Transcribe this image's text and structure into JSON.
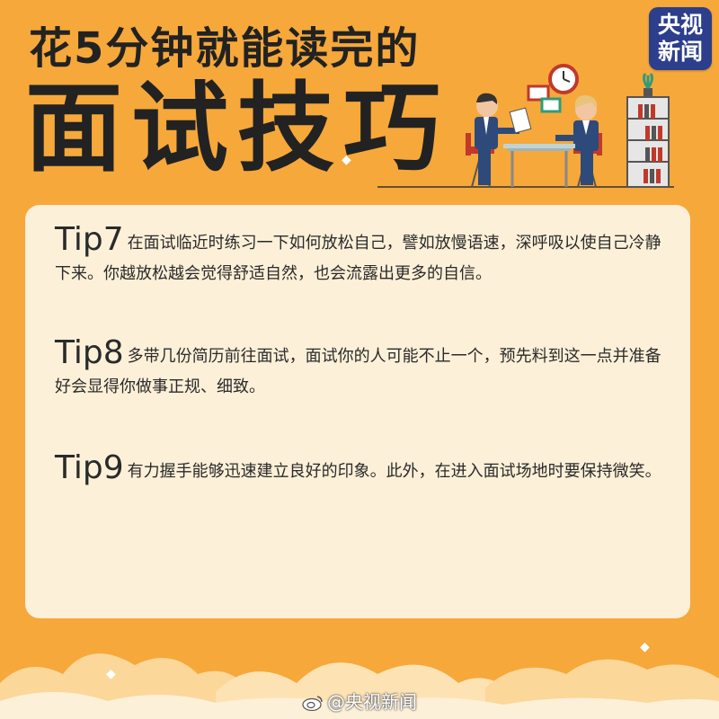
{
  "header": {
    "subtitle": "花5分钟就能读完的",
    "title": "面试技巧"
  },
  "logo": {
    "line1": "央视",
    "line2": "新闻"
  },
  "tips": [
    {
      "label": "Tip7",
      "text": "在面试临近时练习一下如何放松自己，譬如放慢语速，深呼吸以使自己冷静下来。你越放松越会觉得舒适自然，也会流露出更多的自信。"
    },
    {
      "label": "Tip8",
      "text": "多带几份简历前往面试，面试你的人可能不止一个，预先料到这一点并准备好会显得你做事正规、细致。"
    },
    {
      "label": "Tip9",
      "text": "有力握手能够迅速建立良好的印象。此外，在进入面试场地时要保持微笑。"
    }
  ],
  "watermark": {
    "text": "@央视新闻"
  },
  "icons": {
    "clock": "clock-icon",
    "weibo": "weibo-icon"
  },
  "colors": {
    "background": "#f6a83a",
    "card": "#fdf0d8",
    "logo": "#2c3e8c",
    "text": "#222222"
  }
}
